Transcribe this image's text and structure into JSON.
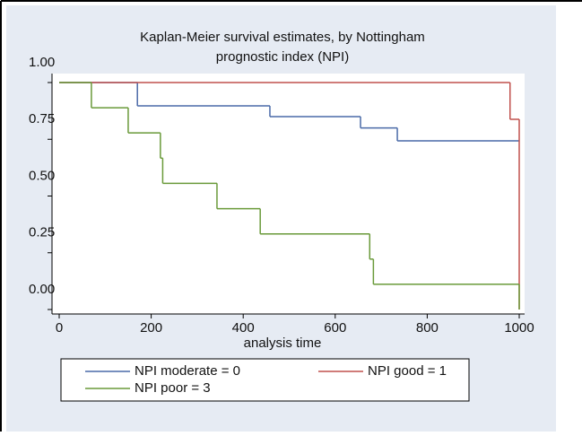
{
  "chart_data": {
    "type": "step",
    "title": [
      "Kaplan-Meier survival estimates, by Nottingham",
      "prognostic index (NPI)"
    ],
    "x_label": "analysis time",
    "xlim": [
      0,
      1000
    ],
    "xticks": [
      0,
      200,
      400,
      600,
      800,
      1000
    ],
    "ylim": [
      0,
      1
    ],
    "yticks": [
      {
        "value": 0,
        "label": "0.00"
      },
      {
        "value": 0.25,
        "label": "0.25"
      },
      {
        "value": 0.5,
        "label": "0.50"
      },
      {
        "value": 0.75,
        "label": "0.75"
      },
      {
        "value": 1,
        "label": "1.00"
      }
    ],
    "series": [
      {
        "name": "NPI moderate = 0",
        "color": "#4a6aa8",
        "x": [
          0,
          170,
          458,
          655,
          735
        ],
        "values": [
          1,
          0.897,
          0.85,
          0.8,
          0.743
        ]
      },
      {
        "name": "NPI good = 1",
        "color": "#c0504d",
        "x": [
          0,
          980,
          1000
        ],
        "values": [
          1,
          0.838,
          0
        ]
      },
      {
        "name": "NPI poor = 3",
        "color": "#6a9a3a",
        "x": [
          0,
          70,
          150,
          220,
          225,
          343,
          437,
          675,
          683,
          1000
        ],
        "values": [
          1,
          0.889,
          0.778,
          0.667,
          0.556,
          0.444,
          0.333,
          0.222,
          0.111,
          0
        ]
      }
    ]
  }
}
